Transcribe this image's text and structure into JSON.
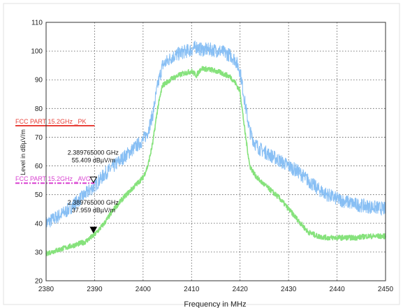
{
  "chart_data": {
    "type": "line",
    "title": "",
    "xlabel": "Frequency in MHz",
    "ylabel": "Level in dBµV/m",
    "xlim": [
      2380,
      2450
    ],
    "ylim": [
      20,
      110
    ],
    "x_ticks": [
      2380,
      2390,
      2400,
      2410,
      2420,
      2430,
      2440,
      2450
    ],
    "y_ticks": [
      20,
      30,
      40,
      50,
      60,
      70,
      80,
      90,
      100,
      110
    ],
    "grid": true,
    "series": [
      {
        "color": "#88bff4",
        "x": [
          2380,
          2382,
          2384,
          2386,
          2388,
          2390,
          2392,
          2394,
          2396,
          2398,
          2400,
          2401,
          2402,
          2403,
          2404,
          2406,
          2408,
          2410,
          2411,
          2412,
          2414,
          2416,
          2418,
          2419,
          2420,
          2421,
          2422,
          2423,
          2424,
          2426,
          2428,
          2430,
          2432,
          2434,
          2436,
          2438,
          2440,
          2442,
          2444,
          2446,
          2448,
          2450
        ],
        "y": [
          40,
          42,
          44,
          47,
          50,
          53,
          57,
          60,
          63,
          66,
          69,
          72,
          78,
          88,
          95,
          98,
          99.5,
          100.5,
          101.5,
          100.5,
          100.5,
          100,
          98.5,
          97,
          93,
          82,
          72,
          68,
          66,
          64,
          62,
          60,
          58,
          55,
          52,
          50,
          48.5,
          47.5,
          46.5,
          46,
          45.5,
          45
        ]
      },
      {
        "color": "#86e27c",
        "x": [
          2380,
          2382,
          2384,
          2386,
          2388,
          2390,
          2392,
          2394,
          2396,
          2398,
          2400,
          2401,
          2402,
          2403,
          2404,
          2406,
          2408,
          2410,
          2411,
          2412,
          2414,
          2416,
          2418,
          2419,
          2420,
          2421,
          2422,
          2423,
          2424,
          2426,
          2428,
          2430,
          2432,
          2434,
          2436,
          2438,
          2440,
          2442,
          2444,
          2446,
          2448,
          2450
        ],
        "y": [
          29.5,
          30.5,
          31.5,
          32.5,
          33.5,
          36,
          40,
          45,
          49,
          52.5,
          56,
          60,
          68,
          80,
          88,
          90.5,
          92,
          93,
          91.5,
          94,
          93.5,
          92.5,
          91,
          89,
          86,
          72,
          60,
          57,
          55,
          52,
          49,
          45,
          41,
          37,
          35.5,
          35,
          35,
          35,
          35,
          35.5,
          35.5,
          35.5
        ]
      }
    ],
    "limit_lines": [
      {
        "label": "FCC PART 15.2GHz _PK",
        "y": 74,
        "x_range": [
          2380,
          2390
        ],
        "color": "#e8413a"
      },
      {
        "label": "FCC PART 15.2GHz _AVG",
        "y": 54,
        "x_range": [
          2380,
          2390
        ],
        "color": "#d83fd0"
      }
    ],
    "markers": [
      {
        "x": 2389.765,
        "y": 55.409,
        "style": "hollow",
        "line1": "2.389765000 GHz",
        "line2": "55.409 dBµV/m"
      },
      {
        "x": 2389.765,
        "y": 37.959,
        "style": "filled",
        "line1": "2.389765000 GHz",
        "line2": "37.959 dBµV/m"
      }
    ]
  }
}
